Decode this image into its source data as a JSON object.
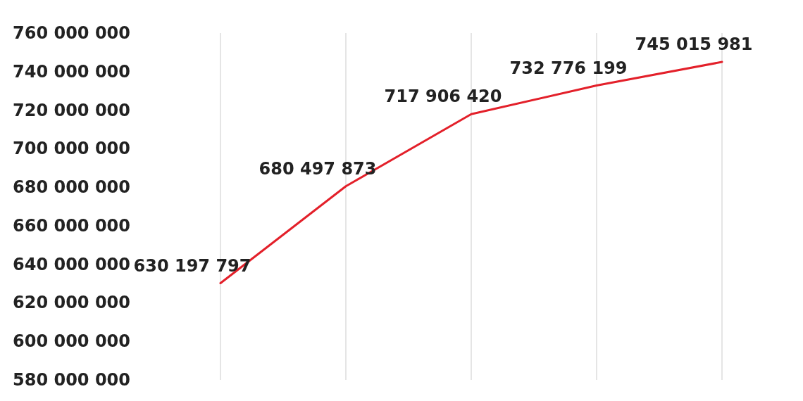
{
  "chart_data": {
    "type": "line",
    "categories": [
      null,
      null,
      null,
      null,
      null
    ],
    "series": [
      {
        "color": "#e3202a",
        "values": [
          630197797,
          680497873,
          717906420,
          732776199,
          745015981
        ]
      }
    ],
    "ylim": [
      580000000,
      760000000
    ],
    "yticks": [
      580000000,
      600000000,
      620000000,
      640000000,
      660000000,
      680000000,
      700000000,
      720000000,
      740000000,
      760000000
    ],
    "grid": "x",
    "data_labels": true,
    "marker": "none",
    "line_style": "solid",
    "tick_labels": "y"
  }
}
